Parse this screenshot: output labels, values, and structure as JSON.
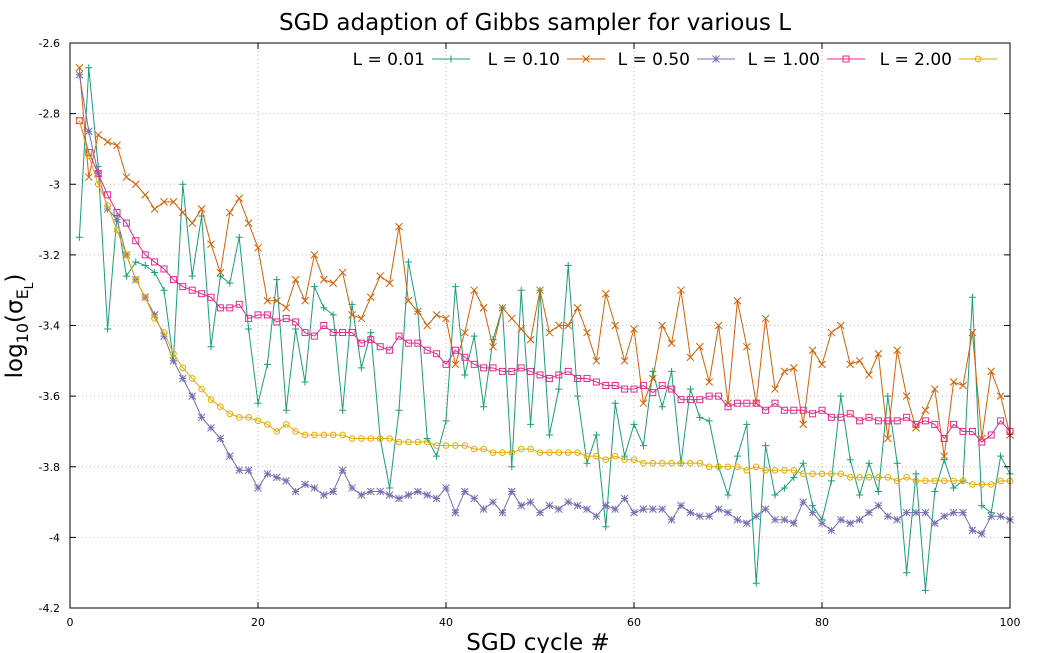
{
  "chart_data": {
    "type": "line",
    "title": "SGD adaption of Gibbs sampler for various L",
    "xlabel": "SGD cycle #",
    "ylabel": "log10(σEL)",
    "ylabel_parts": {
      "pre": "log",
      "sub1": "10",
      "mid": "(σ",
      "sub2": "E",
      "sub3": "L",
      "post": ")"
    },
    "xlim": [
      0,
      100
    ],
    "ylim": [
      -4.2,
      -2.6
    ],
    "xticks": [
      0,
      20,
      40,
      60,
      80,
      100
    ],
    "yticks": [
      -4.2,
      -4,
      -3.8,
      -3.6,
      -3.4,
      -3.2,
      -3,
      -2.8,
      -2.6
    ],
    "xtick_labels": [
      "0",
      "20",
      "40",
      "60",
      "80",
      "100"
    ],
    "ytick_labels": [
      "-4.2",
      "-4",
      "-3.8",
      "-3.6",
      "-3.4",
      "-3.2",
      "-3",
      "-2.8",
      "-2.6"
    ],
    "grid": true,
    "legend_position": "top-right",
    "x": [
      1,
      2,
      3,
      4,
      5,
      6,
      7,
      8,
      9,
      10,
      11,
      12,
      13,
      14,
      15,
      16,
      17,
      18,
      19,
      20,
      21,
      22,
      23,
      24,
      25,
      26,
      27,
      28,
      29,
      30,
      31,
      32,
      33,
      34,
      35,
      36,
      37,
      38,
      39,
      40,
      41,
      42,
      43,
      44,
      45,
      46,
      47,
      48,
      49,
      50,
      51,
      52,
      53,
      54,
      55,
      56,
      57,
      58,
      59,
      60,
      61,
      62,
      63,
      64,
      65,
      66,
      67,
      68,
      69,
      70,
      71,
      72,
      73,
      74,
      75,
      76,
      77,
      78,
      79,
      80,
      81,
      82,
      83,
      84,
      85,
      86,
      87,
      88,
      89,
      90,
      91,
      92,
      93,
      94,
      95,
      96,
      97,
      98,
      99,
      100
    ],
    "series": [
      {
        "name": "L = 0.01",
        "color": "#1a9e77",
        "marker": "plus",
        "values": [
          -3.15,
          -2.67,
          -2.95,
          -3.41,
          -3.09,
          -3.26,
          -3.22,
          -3.23,
          -3.25,
          -3.3,
          -3.5,
          -3.0,
          -3.26,
          -3.09,
          -3.46,
          -3.26,
          -3.28,
          -3.15,
          -3.41,
          -3.62,
          -3.51,
          -3.27,
          -3.64,
          -3.41,
          -3.56,
          -3.29,
          -3.35,
          -3.37,
          -3.64,
          -3.34,
          -3.52,
          -3.42,
          -3.72,
          -3.86,
          -3.64,
          -3.22,
          -3.36,
          -3.72,
          -3.77,
          -3.67,
          -3.29,
          -3.54,
          -3.43,
          -3.63,
          -3.44,
          -3.35,
          -3.8,
          -3.3,
          -3.68,
          -3.3,
          -3.71,
          -3.58,
          -3.23,
          -3.6,
          -3.79,
          -3.71,
          -3.97,
          -3.62,
          -3.77,
          -3.68,
          -3.74,
          -3.53,
          -3.63,
          -3.53,
          -3.79,
          -3.58,
          -3.66,
          -3.67,
          -3.8,
          -3.88,
          -3.77,
          -3.68,
          -4.13,
          -3.74,
          -3.88,
          -3.86,
          -3.83,
          -3.79,
          -3.91,
          -3.95,
          -3.84,
          -3.6,
          -3.78,
          -3.88,
          -3.79,
          -3.87,
          -3.6,
          -3.79,
          -4.1,
          -3.82,
          -4.15,
          -3.87,
          -3.78,
          -3.86,
          -3.84,
          -3.32,
          -3.91,
          -3.93,
          -3.77,
          -3.82
        ]
      },
      {
        "name": "L = 0.10",
        "color": "#d95f02",
        "marker": "cross",
        "values": [
          -2.67,
          -2.98,
          -2.86,
          -2.88,
          -2.89,
          -2.98,
          -3.0,
          -3.03,
          -3.07,
          -3.05,
          -3.05,
          -3.08,
          -3.11,
          -3.07,
          -3.17,
          -3.25,
          -3.08,
          -3.04,
          -3.11,
          -3.18,
          -3.33,
          -3.33,
          -3.35,
          -3.27,
          -3.33,
          -3.2,
          -3.27,
          -3.28,
          -3.25,
          -3.37,
          -3.38,
          -3.32,
          -3.26,
          -3.28,
          -3.12,
          -3.33,
          -3.36,
          -3.4,
          -3.37,
          -3.38,
          -3.51,
          -3.42,
          -3.3,
          -3.35,
          -3.46,
          -3.35,
          -3.38,
          -3.41,
          -3.44,
          -3.3,
          -3.42,
          -3.4,
          -3.4,
          -3.35,
          -3.42,
          -3.5,
          -3.31,
          -3.4,
          -3.5,
          -3.41,
          -3.62,
          -3.55,
          -3.4,
          -3.45,
          -3.3,
          -3.49,
          -3.46,
          -3.56,
          -3.4,
          -3.62,
          -3.33,
          -3.46,
          -3.62,
          -3.38,
          -3.58,
          -3.53,
          -3.52,
          -3.68,
          -3.47,
          -3.51,
          -3.42,
          -3.4,
          -3.51,
          -3.5,
          -3.54,
          -3.48,
          -3.72,
          -3.47,
          -3.6,
          -3.69,
          -3.64,
          -3.58,
          -3.77,
          -3.56,
          -3.57,
          -3.42,
          -3.72,
          -3.53,
          -3.6,
          -3.71
        ]
      },
      {
        "name": "L = 0.50",
        "color": "#7570b3",
        "marker": "star",
        "values": [
          -2.69,
          -2.85,
          -2.97,
          -3.07,
          -3.1,
          -3.2,
          -3.27,
          -3.32,
          -3.37,
          -3.43,
          -3.5,
          -3.55,
          -3.6,
          -3.66,
          -3.69,
          -3.72,
          -3.77,
          -3.81,
          -3.81,
          -3.86,
          -3.82,
          -3.83,
          -3.84,
          -3.87,
          -3.85,
          -3.86,
          -3.88,
          -3.87,
          -3.81,
          -3.86,
          -3.88,
          -3.87,
          -3.87,
          -3.88,
          -3.89,
          -3.88,
          -3.87,
          -3.88,
          -3.89,
          -3.86,
          -3.93,
          -3.87,
          -3.89,
          -3.92,
          -3.9,
          -3.93,
          -3.87,
          -3.91,
          -3.9,
          -3.93,
          -3.91,
          -3.92,
          -3.9,
          -3.91,
          -3.92,
          -3.94,
          -3.91,
          -3.92,
          -3.89,
          -3.93,
          -3.92,
          -3.92,
          -3.92,
          -3.95,
          -3.91,
          -3.93,
          -3.94,
          -3.94,
          -3.92,
          -3.93,
          -3.95,
          -3.96,
          -3.94,
          -3.92,
          -3.95,
          -3.95,
          -3.96,
          -3.9,
          -3.93,
          -3.96,
          -3.98,
          -3.95,
          -3.96,
          -3.95,
          -3.93,
          -3.91,
          -3.94,
          -3.95,
          -3.93,
          -3.93,
          -3.93,
          -3.96,
          -3.94,
          -3.93,
          -3.93,
          -3.98,
          -3.99,
          -3.94,
          -3.94,
          -3.95
        ]
      },
      {
        "name": "L = 1.00",
        "color": "#e7298a",
        "marker": "square",
        "values": [
          -2.82,
          -2.91,
          -2.97,
          -3.03,
          -3.08,
          -3.11,
          -3.16,
          -3.2,
          -3.22,
          -3.24,
          -3.27,
          -3.29,
          -3.3,
          -3.31,
          -3.32,
          -3.35,
          -3.35,
          -3.34,
          -3.38,
          -3.37,
          -3.37,
          -3.39,
          -3.38,
          -3.39,
          -3.42,
          -3.43,
          -3.4,
          -3.42,
          -3.42,
          -3.42,
          -3.45,
          -3.44,
          -3.46,
          -3.47,
          -3.43,
          -3.45,
          -3.45,
          -3.47,
          -3.48,
          -3.51,
          -3.47,
          -3.49,
          -3.51,
          -3.52,
          -3.52,
          -3.53,
          -3.53,
          -3.52,
          -3.53,
          -3.54,
          -3.55,
          -3.54,
          -3.53,
          -3.55,
          -3.55,
          -3.56,
          -3.57,
          -3.57,
          -3.58,
          -3.58,
          -3.57,
          -3.59,
          -3.57,
          -3.58,
          -3.61,
          -3.61,
          -3.61,
          -3.6,
          -3.6,
          -3.63,
          -3.62,
          -3.62,
          -3.62,
          -3.64,
          -3.62,
          -3.64,
          -3.64,
          -3.64,
          -3.65,
          -3.64,
          -3.66,
          -3.66,
          -3.65,
          -3.67,
          -3.66,
          -3.67,
          -3.67,
          -3.67,
          -3.66,
          -3.68,
          -3.67,
          -3.68,
          -3.72,
          -3.68,
          -3.7,
          -3.7,
          -3.73,
          -3.71,
          -3.67,
          -3.7
        ]
      },
      {
        "name": "L = 2.00",
        "color": "#e6ab02",
        "marker": "circle",
        "values": [
          -2.82,
          -2.92,
          -3.0,
          -3.06,
          -3.13,
          -3.2,
          -3.27,
          -3.32,
          -3.38,
          -3.42,
          -3.48,
          -3.52,
          -3.55,
          -3.58,
          -3.61,
          -3.63,
          -3.65,
          -3.66,
          -3.66,
          -3.67,
          -3.68,
          -3.7,
          -3.68,
          -3.7,
          -3.71,
          -3.71,
          -3.71,
          -3.71,
          -3.71,
          -3.72,
          -3.72,
          -3.72,
          -3.72,
          -3.72,
          -3.73,
          -3.73,
          -3.73,
          -3.73,
          -3.74,
          -3.74,
          -3.74,
          -3.74,
          -3.75,
          -3.75,
          -3.76,
          -3.76,
          -3.76,
          -3.75,
          -3.75,
          -3.76,
          -3.76,
          -3.76,
          -3.76,
          -3.76,
          -3.77,
          -3.77,
          -3.78,
          -3.77,
          -3.78,
          -3.78,
          -3.79,
          -3.79,
          -3.79,
          -3.79,
          -3.79,
          -3.79,
          -3.79,
          -3.8,
          -3.8,
          -3.8,
          -3.8,
          -3.81,
          -3.8,
          -3.81,
          -3.81,
          -3.81,
          -3.81,
          -3.82,
          -3.82,
          -3.82,
          -3.82,
          -3.82,
          -3.83,
          -3.83,
          -3.83,
          -3.83,
          -3.83,
          -3.84,
          -3.83,
          -3.84,
          -3.84,
          -3.84,
          -3.84,
          -3.84,
          -3.84,
          -3.85,
          -3.85,
          -3.85,
          -3.84,
          -3.84
        ]
      }
    ]
  }
}
